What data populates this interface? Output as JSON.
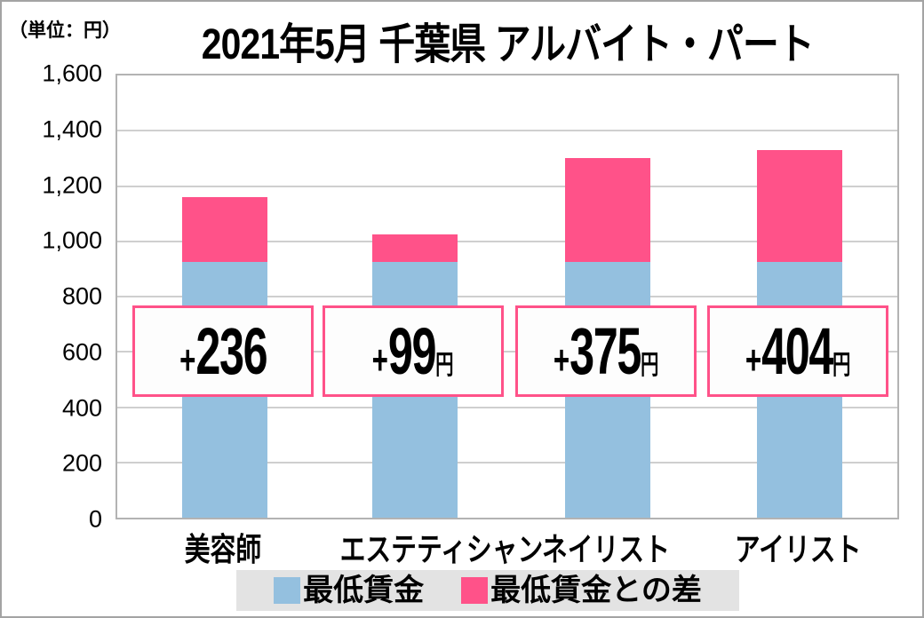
{
  "unit_label": "（単位：円）",
  "title": "2021年5月 千葉県 アルバイト・パート",
  "colors": {
    "bar_blue": "#94C0DF",
    "bar_pink": "#FF5289",
    "annotation_border": "#FF5289",
    "annotation_bg": "#FDFDFD",
    "legend_bg": "#E3E3E3",
    "gridline": "#CFCFCF",
    "plot_border": "#B3B3B3",
    "text": "#000000"
  },
  "chart_data": {
    "type": "bar",
    "stacked": true,
    "title": "2021年5月 千葉県 アルバイト・パート",
    "unit": "円",
    "categories": [
      "美容師",
      "エステティシャン",
      "ネイリスト",
      "アイリスト"
    ],
    "series": [
      {
        "name": "最低賃金",
        "color": "#94C0DF",
        "values": [
          925,
          925,
          925,
          925
        ]
      },
      {
        "name": "最低賃金との差",
        "color": "#FF5289",
        "values": [
          236,
          99,
          375,
          404
        ]
      }
    ],
    "totals": [
      1161,
      1024,
      1300,
      1329
    ],
    "annotations": [
      {
        "prefix": "+",
        "value": "236",
        "suffix": ""
      },
      {
        "prefix": "+",
        "value": "99",
        "suffix": "円"
      },
      {
        "prefix": "+",
        "value": "375",
        "suffix": "円"
      },
      {
        "prefix": "+",
        "value": "404",
        "suffix": "円"
      }
    ],
    "ylim": [
      0,
      1600
    ],
    "yticks": [
      {
        "value": 0,
        "label": "0"
      },
      {
        "value": 200,
        "label": "200"
      },
      {
        "value": 400,
        "label": "400"
      },
      {
        "value": 600,
        "label": "600"
      },
      {
        "value": 800,
        "label": "800"
      },
      {
        "value": 1000,
        "label": "1,000"
      },
      {
        "value": 1200,
        "label": "1,200"
      },
      {
        "value": 1400,
        "label": "1,400"
      },
      {
        "value": 1600,
        "label": "1,600"
      }
    ],
    "grid": true,
    "legend_position": "bottom"
  },
  "legend": {
    "items": [
      {
        "label": "最低賃金",
        "color": "#94C0DF"
      },
      {
        "label": "最低賃金との差",
        "color": "#FF5289"
      }
    ]
  }
}
